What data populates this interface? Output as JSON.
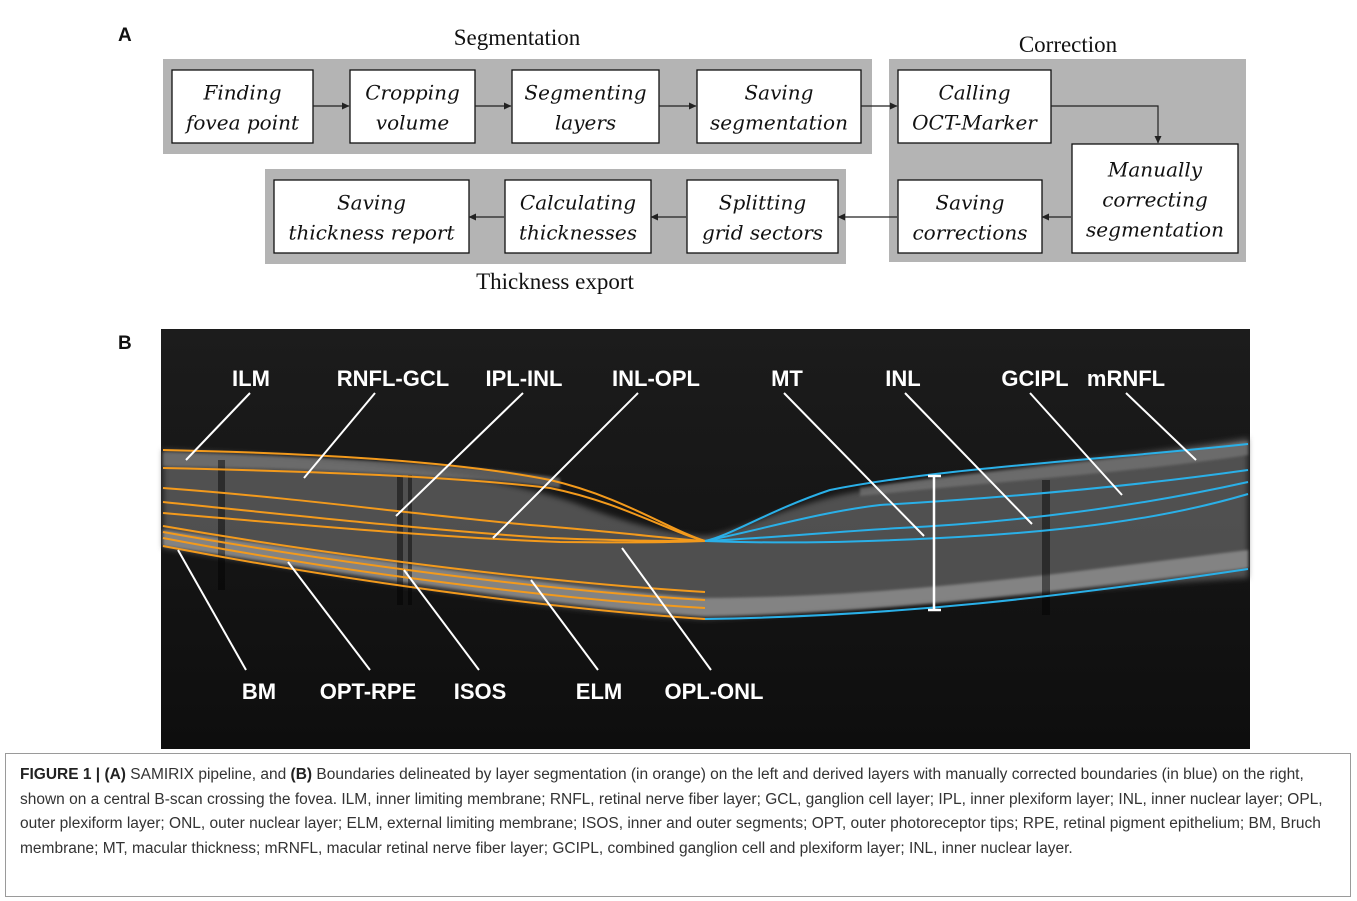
{
  "panel_a": {
    "letter": "A",
    "groups": {
      "segmentation": "Segmentation",
      "correction": "Correction",
      "thickness_export": "Thickness export"
    },
    "steps": [
      [
        "Finding",
        "fovea point"
      ],
      [
        "Cropping",
        "volume"
      ],
      [
        "Segmenting",
        "layers"
      ],
      [
        "Saving",
        "segmentation"
      ],
      [
        "Calling",
        "OCT-Marker"
      ],
      [
        "Manually",
        "correcting",
        "segmentation"
      ],
      [
        "Saving",
        "corrections"
      ],
      [
        "Splitting",
        "grid sectors"
      ],
      [
        "Calculating",
        "thicknesses"
      ],
      [
        "Saving",
        "thickness report"
      ]
    ]
  },
  "panel_b": {
    "letter": "B",
    "top_labels": [
      "ILM",
      "RNFL-GCL",
      "IPL-INL",
      "INL-OPL",
      "MT",
      "INL",
      "GCIPL",
      "mRNFL"
    ],
    "bottom_labels": [
      "BM",
      "OPT-RPE",
      "ISOS",
      "ELM",
      "OPL-ONL"
    ],
    "colors": {
      "segmentation_boundaries": "#f39a1c",
      "corrected_boundaries": "#2ab0e8",
      "scan_background": "#161616",
      "label_text": "#ffffff"
    }
  },
  "caption": {
    "figure_label": "FIGURE 1 |",
    "part_a": "(A)",
    "text_1": " SAMIRIX pipeline, and ",
    "part_b": "(B)",
    "text_2": " Boundaries delineated by layer segmentation (in orange) on the left and derived layers with manually corrected boundaries (in blue) on the right, shown on a central B-scan crossing the fovea. ILM, inner limiting membrane; RNFL, retinal nerve fiber layer; GCL, ganglion cell layer; IPL, inner plexiform layer; INL, inner nuclear layer; OPL, outer plexiform layer; ONL, outer nuclear layer; ELM, external limiting membrane; ISOS, inner and outer segments; OPT, outer photoreceptor tips; RPE, retinal pigment epithelium; BM, Bruch membrane; MT, macular thickness; mRNFL, macular retinal nerve fiber layer; GCIPL, combined ganglion cell and plexiform layer; INL, inner nuclear layer."
  }
}
